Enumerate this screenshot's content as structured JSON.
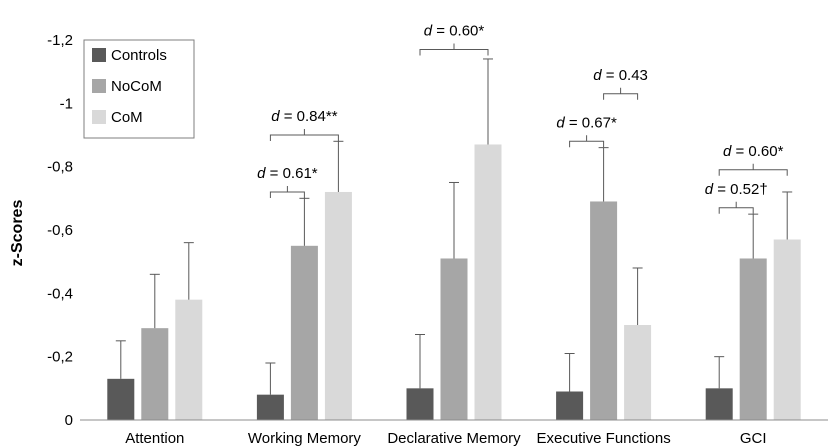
{
  "chart_data": {
    "type": "bar",
    "title": "",
    "xlabel": "",
    "ylabel": "z-Scores",
    "ylim": [
      0,
      -1.2
    ],
    "y_axis_direction": "inverted (more negative values plotted upward)",
    "yticks": [
      "0",
      "-0,2",
      "-0,4",
      "-0,6",
      "-0,8",
      "-1",
      "-1,2"
    ],
    "ytick_values": [
      0,
      -0.2,
      -0.4,
      -0.6,
      -0.8,
      -1.0,
      -1.2
    ],
    "grid": false,
    "legend_position": "top-left",
    "categories": [
      "Attention",
      "Working Memory",
      "Declarative Memory",
      "Executive Functions",
      "GCI"
    ],
    "series": [
      {
        "name": "Controls",
        "color": "#595959",
        "values": [
          -0.13,
          -0.08,
          -0.1,
          -0.09,
          -0.1
        ],
        "error": [
          0.12,
          0.1,
          0.17,
          0.12,
          0.1
        ]
      },
      {
        "name": "NoCoM",
        "color": "#a6a6a6",
        "values": [
          -0.29,
          -0.55,
          -0.51,
          -0.69,
          -0.51
        ],
        "error": [
          0.17,
          0.15,
          0.24,
          0.17,
          0.14
        ]
      },
      {
        "name": "CoM",
        "color": "#d9d9d9",
        "values": [
          -0.38,
          -0.72,
          -0.87,
          -0.3,
          -0.57
        ],
        "error": [
          0.18,
          0.16,
          0.27,
          0.18,
          0.15
        ]
      }
    ],
    "annotations": [
      {
        "category": 1,
        "from": 1,
        "to": 2,
        "d_label": "d",
        "text": " = 0.61*",
        "y": -0.72
      },
      {
        "category": 1,
        "from": 1,
        "to": 3,
        "d_label": "d",
        "text": " = 0.84**",
        "y": -0.9
      },
      {
        "category": 2,
        "from": 1,
        "to": 3,
        "d_label": "d",
        "text": " = 0.60*",
        "y": -1.17
      },
      {
        "category": 3,
        "from": 1,
        "to": 2,
        "d_label": "d",
        "text": " = 0.67*",
        "y": -0.88
      },
      {
        "category": 3,
        "from": 2,
        "to": 3,
        "d_label": "d",
        "text": " = 0.43",
        "y": -1.03
      },
      {
        "category": 4,
        "from": 1,
        "to": 2,
        "d_label": "d",
        "text": " = 0.52†",
        "y": -0.67
      },
      {
        "category": 4,
        "from": 1,
        "to": 3,
        "d_label": "d",
        "text": " = 0.60*",
        "y": -0.79
      }
    ]
  }
}
